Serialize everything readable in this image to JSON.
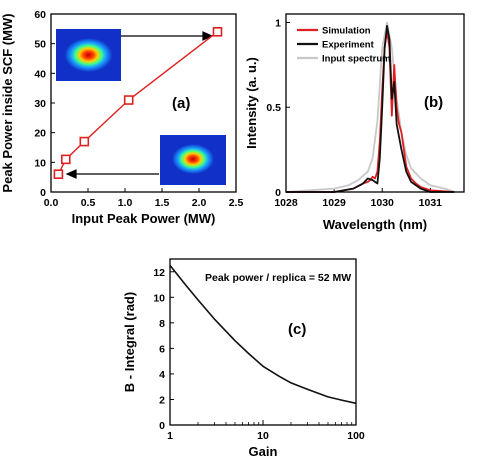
{
  "chart_data": [
    {
      "type": "line",
      "panel_label": "(a)",
      "xlabel": "Input Peak Power (MW)",
      "ylabel": "Peak Power inside SCF (MW)",
      "xlim": [
        0.0,
        2.5
      ],
      "ylim": [
        0,
        60
      ],
      "xticks": [
        "0.0",
        "0.5",
        "1.0",
        "1.5",
        "2.0",
        "2.5"
      ],
      "yticks": [
        "0",
        "10",
        "20",
        "30",
        "40",
        "50",
        "60"
      ],
      "marker": "open-square",
      "color": "#e02020",
      "x": [
        0.1,
        0.2,
        0.45,
        1.05,
        2.25
      ],
      "y": [
        6,
        11,
        17,
        31,
        54
      ],
      "insets": [
        "beam-profile-output",
        "beam-profile-input"
      ]
    },
    {
      "type": "line",
      "panel_label": "(b)",
      "xlabel": "Wavelength (nm)",
      "ylabel": "Intensity (a. u.)",
      "xlim": [
        1028,
        1031.7
      ],
      "ylim": [
        0,
        1.05
      ],
      "xticks": [
        "1028",
        "1029",
        "1030",
        "1031"
      ],
      "yticks": [
        "0",
        "0.5",
        "1"
      ],
      "legend_position": "top-left",
      "series": [
        {
          "name": "Simulation",
          "color": "#e02020",
          "x": [
            1028.0,
            1029.0,
            1029.4,
            1029.6,
            1029.7,
            1029.75,
            1029.8,
            1029.85,
            1029.9,
            1029.95,
            1030.0,
            1030.05,
            1030.1,
            1030.15,
            1030.2,
            1030.25,
            1030.3,
            1030.35,
            1030.4,
            1030.45,
            1030.5,
            1030.6,
            1030.7,
            1030.8,
            1031.0,
            1031.5
          ],
          "y": [
            0.0,
            0.0,
            0.02,
            0.05,
            0.06,
            0.07,
            0.09,
            0.08,
            0.12,
            0.3,
            0.6,
            0.85,
            0.95,
            0.85,
            0.45,
            0.75,
            0.5,
            0.4,
            0.35,
            0.25,
            0.15,
            0.08,
            0.05,
            0.03,
            0.01,
            0.0
          ]
        },
        {
          "name": "Experiment",
          "color": "#111111",
          "x": [
            1028.0,
            1029.0,
            1029.4,
            1029.6,
            1029.7,
            1029.8,
            1029.9,
            1029.95,
            1030.0,
            1030.05,
            1030.1,
            1030.15,
            1030.2,
            1030.25,
            1030.3,
            1030.4,
            1030.5,
            1030.6,
            1030.7,
            1030.8,
            1031.0,
            1031.5
          ],
          "y": [
            0.0,
            0.0,
            0.02,
            0.05,
            0.08,
            0.07,
            0.05,
            0.2,
            0.5,
            0.85,
            0.98,
            0.9,
            0.55,
            0.65,
            0.4,
            0.25,
            0.12,
            0.06,
            0.04,
            0.02,
            0.0,
            0.0
          ]
        },
        {
          "name": "Input spectrum",
          "color": "#c8c8c8",
          "x": [
            1028.0,
            1028.5,
            1029.0,
            1029.3,
            1029.5,
            1029.7,
            1029.8,
            1029.9,
            1030.0,
            1030.1,
            1030.2,
            1030.3,
            1030.4,
            1030.5,
            1030.6,
            1030.8,
            1031.0,
            1031.3,
            1031.5
          ],
          "y": [
            0.0,
            0.01,
            0.02,
            0.04,
            0.07,
            0.12,
            0.2,
            0.42,
            0.85,
            1.0,
            0.85,
            0.55,
            0.35,
            0.22,
            0.14,
            0.08,
            0.04,
            0.02,
            0.0
          ]
        }
      ]
    },
    {
      "type": "line",
      "panel_label": "(c)",
      "annotation": "Peak power / replica = 52 MW",
      "xlabel": "Gain",
      "ylabel": "B - Integral (rad)",
      "xscale": "log",
      "xlim": [
        1,
        100
      ],
      "ylim": [
        0,
        13
      ],
      "xticks": [
        "1",
        "10",
        "100"
      ],
      "yticks": [
        "0",
        "2",
        "4",
        "6",
        "8",
        "10",
        "12"
      ],
      "color": "#111111",
      "x": [
        1,
        1.5,
        2,
        3,
        5,
        7,
        10,
        15,
        20,
        30,
        50,
        70,
        100
      ],
      "y": [
        12.5,
        10.9,
        9.8,
        8.3,
        6.6,
        5.6,
        4.6,
        3.8,
        3.3,
        2.8,
        2.2,
        1.95,
        1.7
      ]
    }
  ]
}
